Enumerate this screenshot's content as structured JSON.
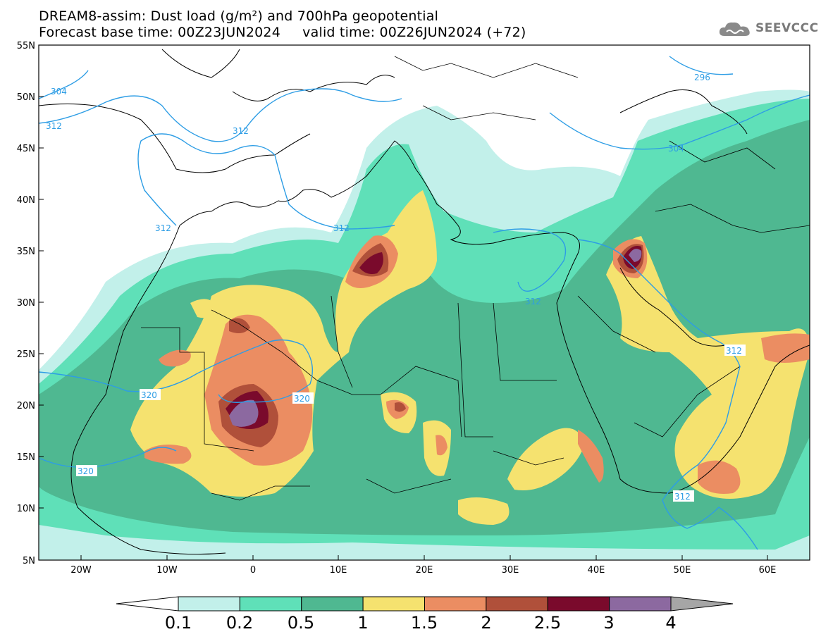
{
  "header": {
    "title_line1": "DREAM8-assim: Dust load (g/m²) and 700hPa geopotential",
    "title_line2": "Forecast base time: 00Z23JUN2024     valid time: 00Z26JUN2024 (+72)"
  },
  "logo": {
    "text": "SEEVCCC",
    "icon": "cloud-icon"
  },
  "map": {
    "lat_labels": [
      "55N",
      "50N",
      "45N",
      "40N",
      "35N",
      "30N",
      "25N",
      "20N",
      "15N",
      "10N",
      "5N"
    ],
    "lon_labels": [
      "20W",
      "10W",
      "0",
      "10E",
      "20E",
      "30E",
      "40E",
      "50E",
      "60E"
    ],
    "contour_labels": [
      "304",
      "312",
      "312",
      "312",
      "312",
      "312",
      "296",
      "304",
      "320",
      "320",
      "320",
      "312",
      "312"
    ]
  },
  "colorbar": {
    "labels": [
      "0.1",
      "0.2",
      "0.5",
      "1",
      "1.5",
      "2",
      "2.5",
      "3",
      "4"
    ],
    "colors": [
      "#c2f0ea",
      "#5fe0b8",
      "#4fb891",
      "#f5e26f",
      "#eb8d62",
      "#b0503a",
      "#7a0a2c",
      "#8c69a0"
    ],
    "under_color": "#ffffff",
    "over_color": "#a6a6a6"
  }
}
